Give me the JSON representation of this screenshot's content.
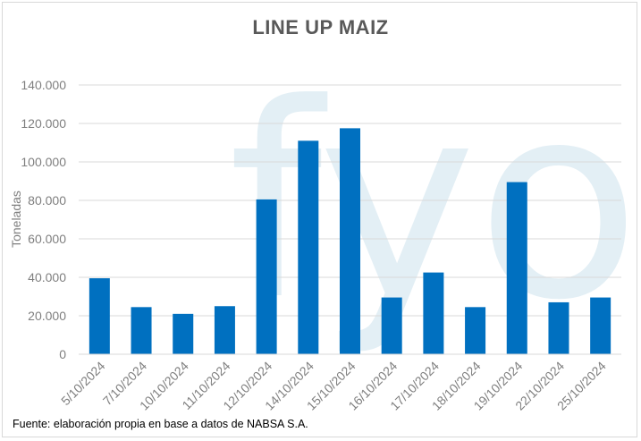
{
  "source_note": "Fuente: elaboración propia en base a datos de NABSA S.A.",
  "watermark_text": "fyo",
  "colors": {
    "bar": "#0070c0",
    "grid": "#d9d9d9",
    "watermark": "#e3eff5"
  },
  "chart_data": {
    "type": "bar",
    "title": "LINE UP MAIZ",
    "xlabel": "",
    "ylabel": "Toneladas",
    "ylim": [
      0,
      140000
    ],
    "yticks": [
      0,
      20000,
      40000,
      60000,
      80000,
      100000,
      120000,
      140000
    ],
    "ytick_labels": [
      "0",
      "20.000",
      "40.000",
      "60.000",
      "80.000",
      "100.000",
      "120.000",
      "140.000"
    ],
    "grid": true,
    "legend": "none",
    "categories": [
      "5/10/2024",
      "7/10/2024",
      "10/10/2024",
      "11/10/2024",
      "12/10/2024",
      "14/10/2024",
      "15/10/2024",
      "16/10/2024",
      "17/10/2024",
      "18/10/2024",
      "19/10/2024",
      "22/10/2024",
      "25/10/2024"
    ],
    "values": [
      39500,
      24500,
      21000,
      25000,
      80500,
      111000,
      117500,
      29500,
      42500,
      24500,
      89500,
      27000,
      29500
    ]
  }
}
